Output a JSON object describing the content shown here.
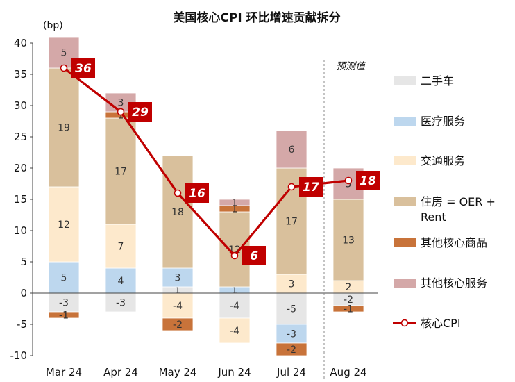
{
  "chart_data": {
    "type": "bar",
    "stacked": true,
    "title": "美国核心CPI 环比增速贡献拆分",
    "ylabel": "(bp)",
    "ylim": [
      -10,
      40
    ],
    "yticks": [
      -10,
      -5,
      0,
      5,
      10,
      15,
      20,
      25,
      30,
      35,
      40
    ],
    "categories": [
      "Mar 24",
      "Apr 24",
      "May 24",
      "Jun 24",
      "Jul 24",
      "Aug 24"
    ],
    "forecast_label": "预测值",
    "forecast_from": "Aug 24",
    "series": [
      {
        "name": "二手车",
        "color": "#e6e6e6",
        "values": [
          -3,
          -3,
          1,
          -4,
          -5,
          -2
        ]
      },
      {
        "name": "医疗服务",
        "color": "#bdd7ee",
        "values": [
          5,
          4,
          3,
          1,
          -3,
          0
        ]
      },
      {
        "name": "交通服务",
        "color": "#fde9cc",
        "values": [
          12,
          7,
          -4,
          -4,
          3,
          2
        ]
      },
      {
        "name": "住房 = OER + Rent",
        "color": "#d9c09c",
        "values": [
          19,
          17,
          18,
          12,
          17,
          13
        ]
      },
      {
        "name": "其他核心商品",
        "color": "#c8733a",
        "values": [
          -1,
          1,
          -2,
          1,
          -2,
          -1
        ]
      },
      {
        "name": "其他核心服务",
        "color": "#d4a8a8",
        "values": [
          5,
          3,
          0,
          1,
          6,
          5
        ]
      }
    ],
    "line": {
      "name": "核心CPI",
      "color": "#c00000",
      "values": [
        36,
        29,
        16,
        6,
        17,
        18
      ]
    },
    "legend_position": "right",
    "grid": false
  }
}
